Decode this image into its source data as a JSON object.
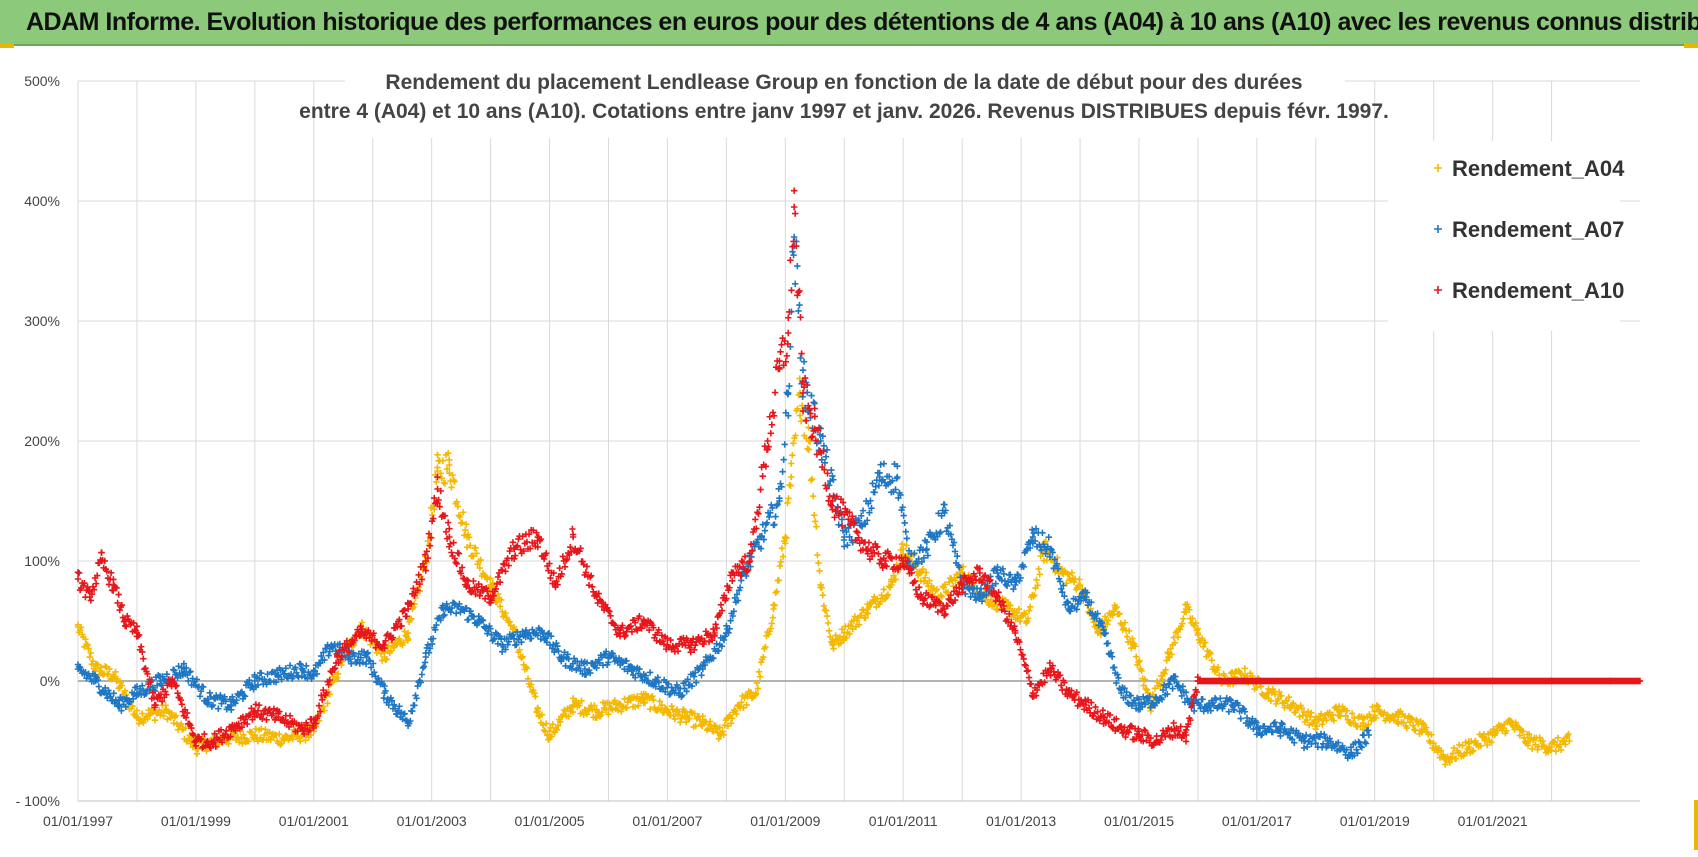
{
  "banner": {
    "title": "ADAM Informe. Evolution historique des performances en euros pour des détentions de 4 ans (A04) à 10 ans (A10) avec les revenus connus distribués"
  },
  "colors": {
    "banner_bg": "#8cc97a",
    "series_A04": "#f5b800",
    "series_A07": "#1f77c4",
    "series_A10": "#e8161b",
    "grid": "#d9d9d9"
  },
  "chart_data": {
    "type": "scatter",
    "title_lines": [
      "Rendement du placement Lendlease Group en fonction de la date de début pour des durées",
      "entre 4 (A04) et 10 ans (A10).  Cotations entre janv 1997 et janv. 2026. Revenus DISTRIBUES depuis févr. 1997."
    ],
    "xlabel": "",
    "ylabel": "",
    "x_range": [
      1997.0,
      2023.5
    ],
    "ylim": [
      -100,
      500
    ],
    "y_ticks": [
      -100,
      0,
      100,
      200,
      300,
      400,
      500
    ],
    "y_tick_labels": [
      "- 100%",
      "0%",
      "100%",
      "200%",
      "300%",
      "400%",
      "500%"
    ],
    "x_ticks": [
      1997,
      1999,
      2001,
      2003,
      2005,
      2007,
      2009,
      2011,
      2013,
      2015,
      2017,
      2019,
      2021
    ],
    "x_tick_labels": [
      "01/01/1997",
      "01/01/1999",
      "01/01/2001",
      "01/01/2003",
      "01/01/2005",
      "01/01/2007",
      "01/01/2009",
      "01/01/2011",
      "01/01/2013",
      "01/01/2015",
      "01/01/2017",
      "01/01/2019",
      "01/01/2021"
    ],
    "grid": true,
    "legend_position": "right",
    "series": [
      {
        "name": "Rendement_A04",
        "color": "#f5b800",
        "x": [
          1997.0,
          1997.3,
          1997.6,
          1998.0,
          1998.5,
          1999.0,
          1999.5,
          2000.0,
          2000.5,
          2001.0,
          2001.5,
          2001.8,
          2002.2,
          2002.6,
          2002.9,
          2003.1,
          2003.3,
          2003.6,
          2004.0,
          2004.4,
          2004.8,
          2005.0,
          2005.4,
          2005.8,
          2006.2,
          2006.6,
          2007.0,
          2007.3,
          2007.6,
          2007.9,
          2008.2,
          2008.5,
          2008.8,
          2009.0,
          2009.1,
          2009.25,
          2009.4,
          2009.6,
          2009.8,
          2010.0,
          2010.4,
          2010.8,
          2011.0,
          2011.3,
          2011.6,
          2012.0,
          2012.4,
          2012.8,
          2013.1,
          2013.4,
          2013.7,
          2014.0,
          2014.3,
          2014.6,
          2014.9,
          2015.2,
          2015.5,
          2015.8,
          2016.0,
          2016.4,
          2016.8,
          2017.2,
          2017.6,
          2018.0,
          2018.4,
          2018.8,
          2019.0,
          2019.4,
          2019.8,
          2020.2,
          2020.6,
          2021.0,
          2021.3,
          2021.6,
          2022.0,
          2022.3
        ],
        "values": [
          45,
          10,
          5,
          -30,
          -25,
          -55,
          -48,
          -45,
          -48,
          -42,
          20,
          45,
          20,
          40,
          100,
          175,
          180,
          120,
          80,
          40,
          -25,
          -45,
          -20,
          -25,
          -20,
          -15,
          -25,
          -30,
          -35,
          -45,
          -20,
          -10,
          60,
          120,
          170,
          240,
          200,
          80,
          30,
          40,
          60,
          80,
          110,
          90,
          70,
          90,
          70,
          60,
          50,
          110,
          90,
          80,
          40,
          60,
          30,
          -20,
          20,
          60,
          40,
          0,
          5,
          -10,
          -20,
          -35,
          -25,
          -35,
          -25,
          -30,
          -40,
          -65,
          -55,
          -45,
          -35,
          -50,
          -55,
          -50
        ]
      },
      {
        "name": "Rendement_A07",
        "color": "#1f77c4",
        "x": [
          1997.0,
          1997.3,
          1997.7,
          1998.0,
          1998.4,
          1998.8,
          1999.2,
          1999.6,
          2000.0,
          2000.4,
          2000.8,
          2001.0,
          2001.3,
          2001.6,
          2001.9,
          2002.2,
          2002.6,
          2002.9,
          2003.2,
          2003.5,
          2003.8,
          2004.2,
          2004.6,
          2004.9,
          2005.2,
          2005.6,
          2006.0,
          2006.4,
          2006.8,
          2007.2,
          2007.6,
          2008.0,
          2008.3,
          2008.6,
          2008.9,
          2009.05,
          2009.15,
          2009.3,
          2009.6,
          2010.0,
          2010.3,
          2010.6,
          2010.9,
          2011.1,
          2011.4,
          2011.7,
          2012.0,
          2012.3,
          2012.6,
          2012.9,
          2013.2,
          2013.5,
          2013.8,
          2014.1,
          2014.4,
          2014.7,
          2015.0,
          2015.3,
          2015.6,
          2015.9,
          2016.2,
          2016.6,
          2017.0,
          2017.4,
          2017.8,
          2018.2,
          2018.6,
          2018.9
        ],
        "values": [
          10,
          0,
          -20,
          -10,
          0,
          10,
          -15,
          -20,
          0,
          5,
          10,
          5,
          30,
          20,
          20,
          -10,
          -35,
          20,
          60,
          60,
          50,
          30,
          40,
          40,
          20,
          10,
          20,
          10,
          0,
          -10,
          10,
          40,
          90,
          120,
          150,
          240,
          370,
          250,
          200,
          120,
          130,
          170,
          170,
          100,
          110,
          140,
          80,
          70,
          90,
          80,
          120,
          110,
          60,
          70,
          40,
          -10,
          -20,
          -15,
          0,
          -20,
          -20,
          -20,
          -40,
          -40,
          -50,
          -50,
          -60,
          -45
        ]
      },
      {
        "name": "Rendement_A10",
        "color": "#e8161b",
        "x": [
          1997.0,
          1997.2,
          1997.4,
          1997.6,
          1997.8,
          1998.0,
          1998.3,
          1998.6,
          1999.0,
          1999.3,
          1999.6,
          2000.0,
          2000.4,
          2000.8,
          2001.0,
          2001.4,
          2001.8,
          2002.2,
          2002.6,
          2002.9,
          2003.1,
          2003.3,
          2003.6,
          2004.0,
          2004.4,
          2004.8,
          2005.1,
          2005.4,
          2005.8,
          2006.2,
          2006.6,
          2007.0,
          2007.4,
          2007.8,
          2008.1,
          2008.4,
          2008.7,
          2008.9,
          2009.05,
          2009.15,
          2009.3,
          2009.5,
          2009.8,
          2010.1,
          2010.4,
          2010.7,
          2011.0,
          2011.3,
          2011.7,
          2012.0,
          2012.3,
          2012.6,
          2012.9,
          2013.2,
          2013.5,
          2013.8,
          2014.1,
          2014.4,
          2014.7,
          2015.0,
          2015.3,
          2015.6,
          2015.8,
          2016.0,
          2017.0,
          2018.0,
          2019.0,
          2020.0,
          2021.0,
          2022.0,
          2023.0,
          2023.5
        ],
        "values": [
          85,
          70,
          100,
          80,
          50,
          40,
          -20,
          0,
          -50,
          -50,
          -40,
          -25,
          -30,
          -40,
          -35,
          20,
          40,
          30,
          60,
          100,
          160,
          120,
          80,
          70,
          110,
          120,
          80,
          120,
          70,
          40,
          50,
          30,
          30,
          40,
          90,
          100,
          200,
          260,
          290,
          395,
          240,
          210,
          150,
          130,
          110,
          100,
          100,
          70,
          60,
          80,
          90,
          70,
          40,
          -10,
          10,
          -10,
          -20,
          -30,
          -40,
          -45,
          -50,
          -40,
          -45,
          0,
          0,
          0,
          0,
          0,
          0,
          0,
          0,
          0
        ]
      }
    ]
  }
}
